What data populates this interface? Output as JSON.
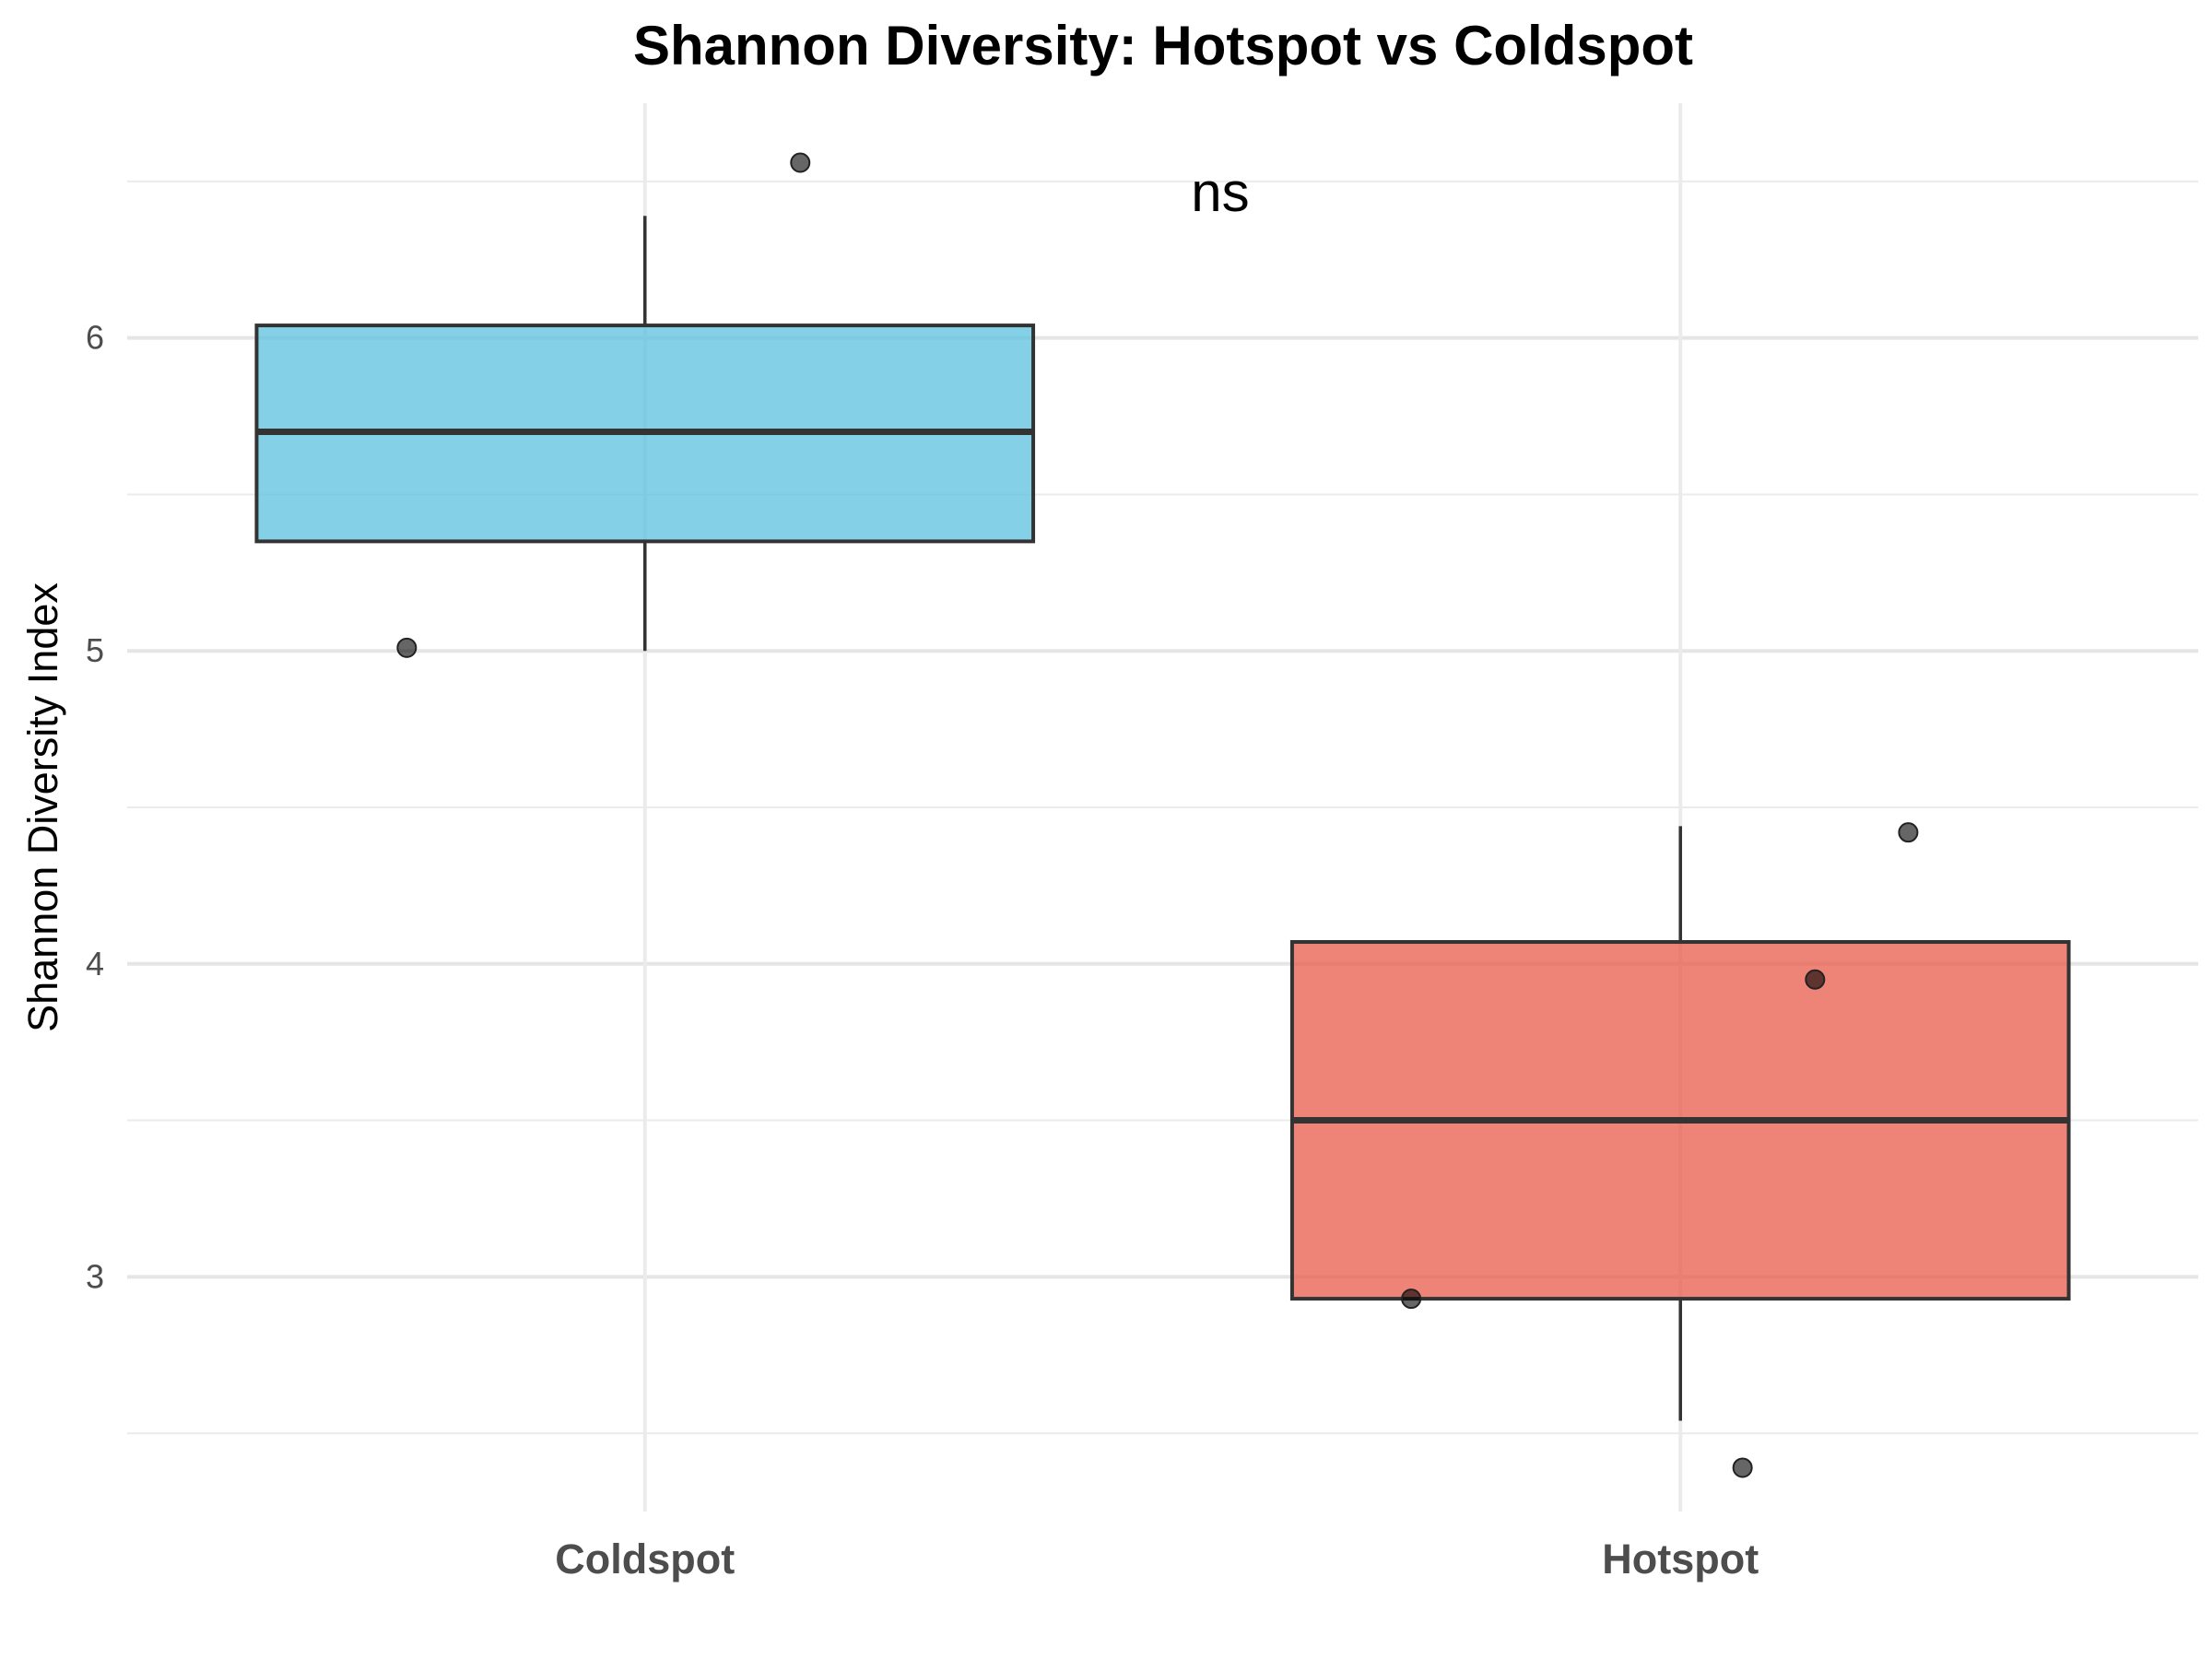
{
  "chart_data": {
    "type": "box",
    "title": "Shannon Diversity: Hotspot vs Coldspot",
    "xlabel": "",
    "ylabel": "Shannon Diversity Index",
    "ylim": [
      2.25,
      6.75
    ],
    "yticks": [
      3,
      4,
      5,
      6
    ],
    "grid": true,
    "legend": "none",
    "categories": [
      "Coldspot",
      "Hotspot"
    ],
    "boxes": [
      {
        "category": "Coldspot",
        "color": "#5BC0DE",
        "whisker_low": 5.0,
        "q1": 5.35,
        "median": 5.7,
        "q3": 6.04,
        "whisker_high": 6.39,
        "points": [
          {
            "jitter": -0.23,
            "y": 5.01
          },
          {
            "jitter": 0.15,
            "y": 6.56
          }
        ]
      },
      {
        "category": "Hotspot",
        "color": "#E8594A",
        "whisker_low": 2.54,
        "q1": 2.93,
        "median": 3.5,
        "q3": 4.07,
        "whisker_high": 4.44,
        "points": [
          {
            "jitter": -0.26,
            "y": 2.93
          },
          {
            "jitter": 0.13,
            "y": 3.95
          },
          {
            "jitter": 0.22,
            "y": 4.42
          },
          {
            "jitter": 0.06,
            "y": 2.39
          }
        ]
      }
    ],
    "annotations": [
      {
        "text": "ns",
        "x": 1.52,
        "y": 6.45
      }
    ]
  }
}
